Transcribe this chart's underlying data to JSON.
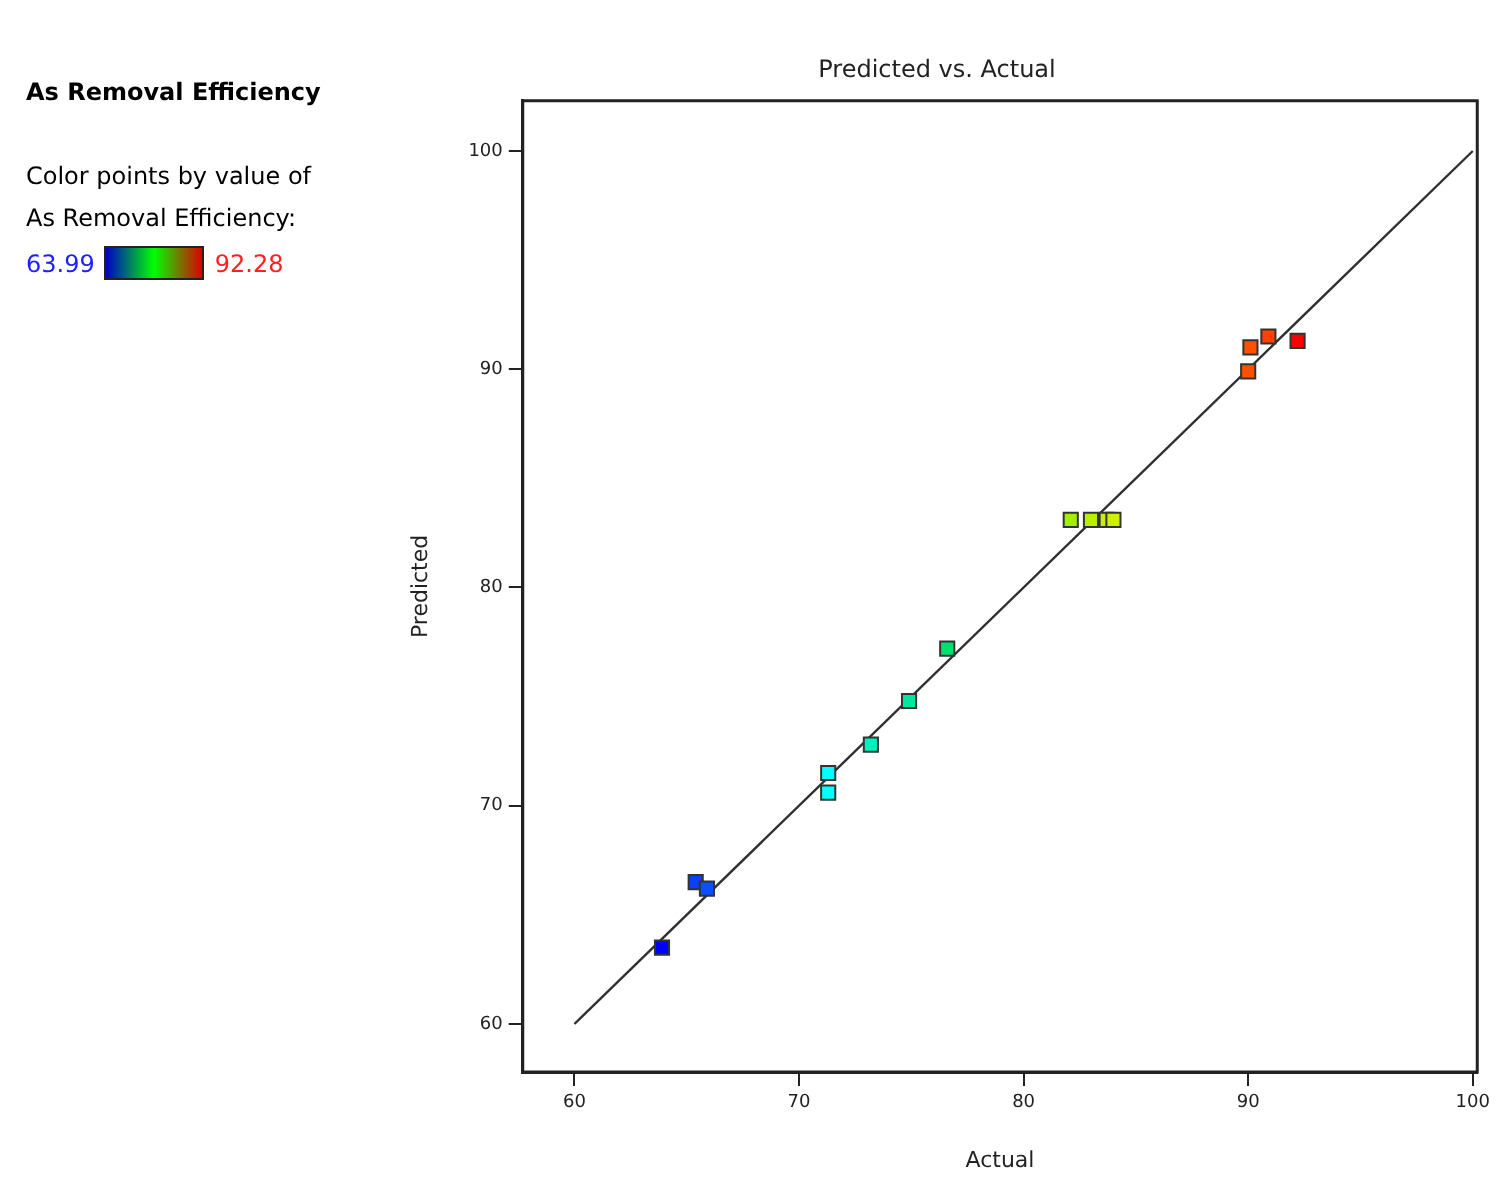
{
  "chart_data": {
    "type": "scatter",
    "title": "Predicted vs. Actual",
    "xlabel": "Actual",
    "ylabel": "Predicted",
    "annotations": [
      "As Removal Efficiency",
      "Color points by value of As Removal Efficiency:",
      "63.99",
      "92.28"
    ],
    "x": [
      63.9,
      65.4,
      65.9,
      71.3,
      71.3,
      73.2,
      74.9,
      76.6,
      82.1,
      83.0,
      83.7,
      84.0,
      90.0,
      90.1,
      90.9,
      92.2
    ],
    "series": [
      {
        "values": [
          63.5,
          66.5,
          66.2,
          71.5,
          70.6,
          72.8,
          74.8,
          77.2,
          83.1,
          83.1,
          83.1,
          83.1,
          89.9,
          91.0,
          91.5,
          91.3
        ],
        "marker": "square",
        "colors": [
          "#0000ff",
          "#0a40ff",
          "#0a50ff",
          "#00ffff",
          "#00ffff",
          "#00f0c0",
          "#00e8a0",
          "#00e070",
          "#a0f000",
          "#b8f000",
          "#c8f000",
          "#d0f000",
          "#ff5000",
          "#ff5000",
          "#ff4000",
          "#ff0000"
        ]
      },
      {
        "type": "line",
        "x": [
          60,
          100
        ],
        "values": [
          60,
          100
        ],
        "color": "#303030"
      }
    ],
    "xlim": [
      57.7,
      100.2
    ],
    "xticks": [
      60,
      70,
      80,
      90,
      100
    ],
    "ylim": [
      57.8,
      102.3
    ],
    "yticks": [
      60,
      70,
      80,
      90,
      100
    ],
    "grid": false,
    "legend": false
  }
}
